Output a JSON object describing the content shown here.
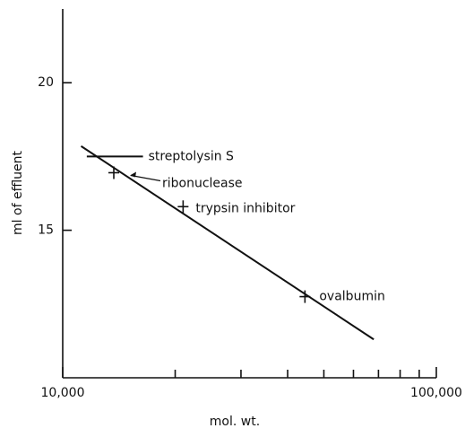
{
  "chart_data": {
    "type": "scatter",
    "x_label": "mol. wt.",
    "y_label": "ml of effluent",
    "x_log": true,
    "xlim": [
      10000,
      100000
    ],
    "xticks": [
      {
        "value": 10000,
        "label": "10,000"
      },
      {
        "value": 100000,
        "label": "100,000"
      }
    ],
    "xminorticks": [
      20000,
      30000,
      40000,
      50000,
      60000,
      70000,
      80000,
      90000
    ],
    "ylim": [
      10,
      22.5
    ],
    "yticks": [
      15,
      20
    ],
    "color": "#111111",
    "points": [
      {
        "label": "ribonuclease",
        "x": 13700,
        "y": 16.95
      },
      {
        "label": "trypsin inhibitor",
        "x": 21000,
        "y": 15.8
      },
      {
        "label": "ovalbumin",
        "x": 44500,
        "y": 12.75
      }
    ],
    "range_marker": {
      "label": "streptolysin S",
      "x": [
        11600,
        16400
      ],
      "y": 17.5
    },
    "fit_line": {
      "x": [
        11200,
        68000
      ],
      "y": [
        17.85,
        11.3
      ]
    }
  }
}
